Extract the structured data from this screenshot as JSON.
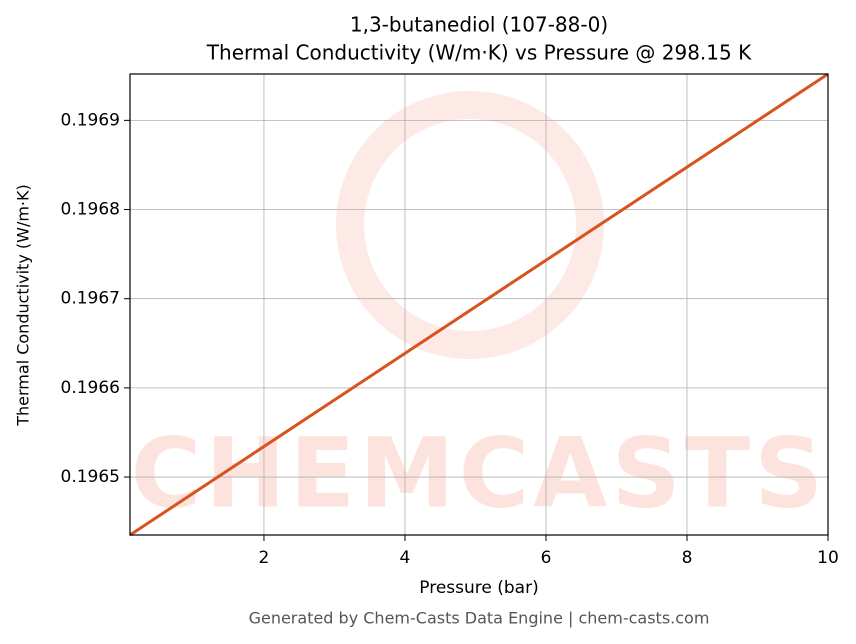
{
  "chart_data": {
    "type": "line",
    "title": "1,3-butanediol (107-88-0)",
    "subtitle": "Thermal Conductivity (W/m·K) vs Pressure @ 298.15 K",
    "x_label": "Pressure (bar)",
    "y_label": "Thermal Conductivity (W/m·K)",
    "watermark": "CHEMCASTS",
    "footer": "Generated by Chem-Casts Data Engine | chem-casts.com",
    "x": [
      0.1,
      10
    ],
    "series": [
      {
        "name": "Thermal Conductivity",
        "color": "#d9531e",
        "values": [
          0.196435,
          0.196952
        ]
      }
    ],
    "xlim": [
      0.1,
      10
    ],
    "xticks": [
      2,
      4,
      6,
      8,
      10
    ],
    "ylim": [
      0.196435,
      0.196952
    ],
    "yticks": [
      0.1965,
      0.1966,
      0.1967,
      0.1968,
      0.1969
    ],
    "grid": true
  }
}
